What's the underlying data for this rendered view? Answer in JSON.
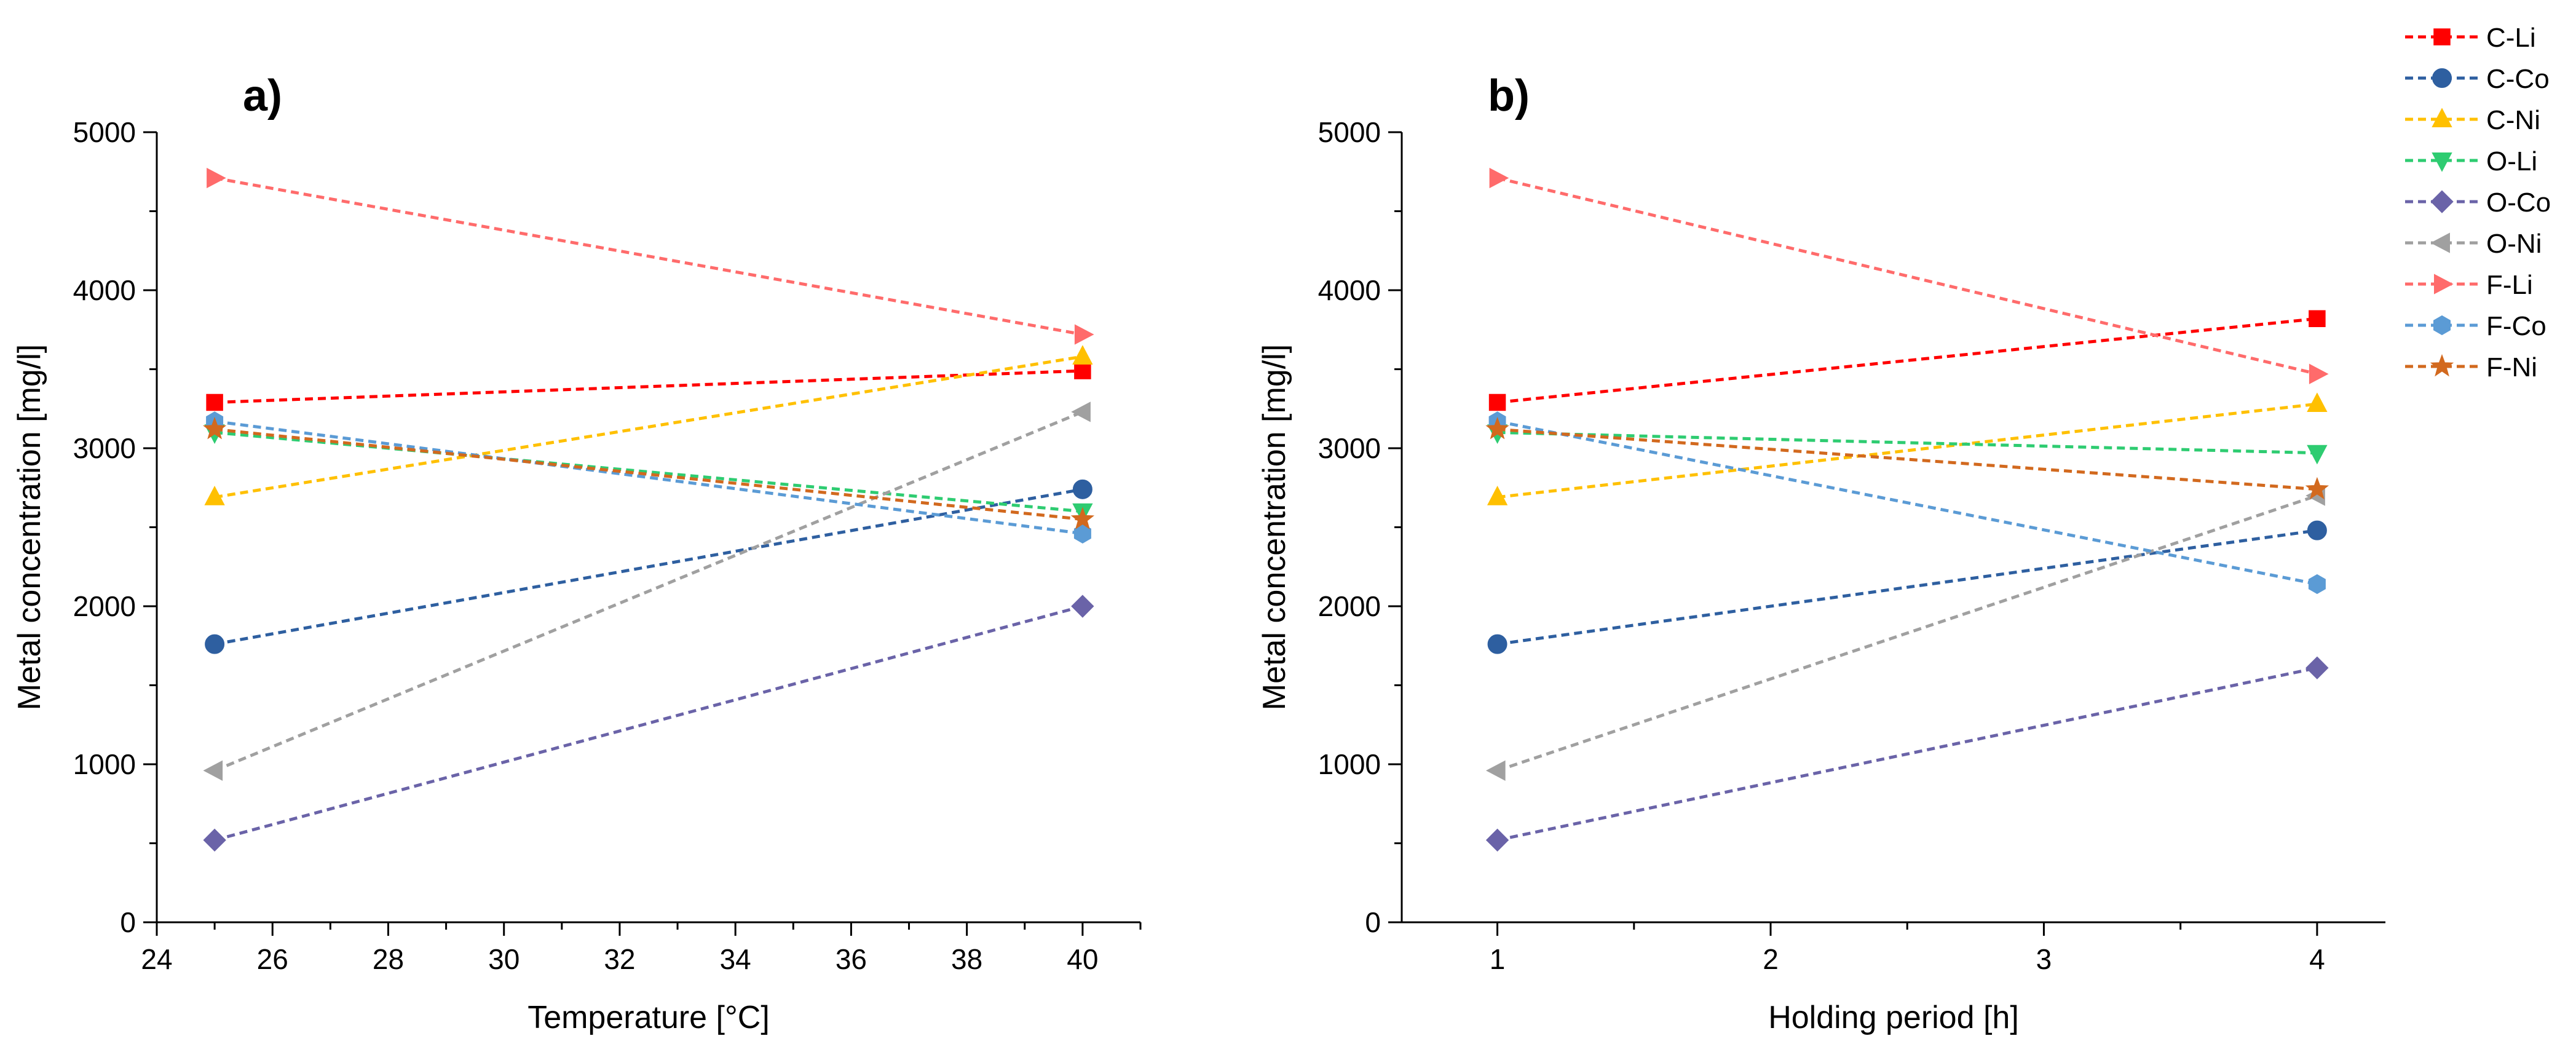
{
  "chart_data": [
    {
      "type": "line",
      "panel_label": "a)",
      "xlabel": "Temperature [°C]",
      "ylabel": "Metal concentration [mg/l]",
      "xlim": [
        24,
        41
      ],
      "ylim": [
        0,
        5000
      ],
      "x": [
        25,
        40
      ],
      "xticks": [
        24,
        26,
        28,
        30,
        32,
        34,
        36,
        38,
        40
      ],
      "xtick_labels": [
        "24",
        "26",
        "28",
        "30",
        "32",
        "34",
        "36",
        "38",
        "40"
      ],
      "yticks": [
        0,
        1000,
        2000,
        3000,
        4000,
        5000
      ],
      "ytick_labels": [
        "0",
        "1000",
        "2000",
        "3000",
        "4000",
        "5000"
      ],
      "grid": false,
      "series": [
        {
          "name": "C-Li",
          "values": [
            3290,
            3490
          ]
        },
        {
          "name": "C-Co",
          "values": [
            1760,
            2740
          ]
        },
        {
          "name": "C-Ni",
          "values": [
            2690,
            3580
          ]
        },
        {
          "name": "O-Li",
          "values": [
            3100,
            2600
          ]
        },
        {
          "name": "O-Co",
          "values": [
            520,
            2000
          ]
        },
        {
          "name": "O-Ni",
          "values": [
            960,
            3230
          ]
        },
        {
          "name": "F-Li",
          "values": [
            4710,
            3720
          ]
        },
        {
          "name": "F-Co",
          "values": [
            3170,
            2460
          ]
        },
        {
          "name": "F-Ni",
          "values": [
            3120,
            2550
          ]
        }
      ]
    },
    {
      "type": "line",
      "panel_label": "b)",
      "xlabel": "Holding period [h]",
      "ylabel": "Metal concentration [mg/l]",
      "xlim": [
        0.65,
        4.25
      ],
      "ylim": [
        0,
        5000
      ],
      "x": [
        1,
        4
      ],
      "xticks": [
        1,
        2,
        3,
        4
      ],
      "xtick_labels": [
        "1",
        "2",
        "3",
        "4"
      ],
      "yticks": [
        0,
        1000,
        2000,
        3000,
        4000,
        5000
      ],
      "ytick_labels": [
        "0",
        "1000",
        "2000",
        "3000",
        "4000",
        "5000"
      ],
      "grid": false,
      "series": [
        {
          "name": "C-Li",
          "values": [
            3290,
            3820
          ]
        },
        {
          "name": "C-Co",
          "values": [
            1760,
            2480
          ]
        },
        {
          "name": "C-Ni",
          "values": [
            2690,
            3280
          ]
        },
        {
          "name": "O-Li",
          "values": [
            3100,
            2970
          ]
        },
        {
          "name": "O-Co",
          "values": [
            520,
            1610
          ]
        },
        {
          "name": "O-Ni",
          "values": [
            960,
            2700
          ]
        },
        {
          "name": "F-Li",
          "values": [
            4710,
            3470
          ]
        },
        {
          "name": "F-Co",
          "values": [
            3170,
            2140
          ]
        },
        {
          "name": "F-Ni",
          "values": [
            3120,
            2740
          ]
        }
      ]
    }
  ],
  "legend": {
    "placement": "top-right",
    "entries": [
      {
        "name": "C-Li",
        "color": "#ff0000",
        "marker": "square"
      },
      {
        "name": "C-Co",
        "color": "#2e5fa0",
        "marker": "circle"
      },
      {
        "name": "C-Ni",
        "color": "#ffc000",
        "marker": "triangle-up"
      },
      {
        "name": "O-Li",
        "color": "#2ecc71",
        "marker": "triangle-down"
      },
      {
        "name": "O-Co",
        "color": "#6a63a8",
        "marker": "diamond"
      },
      {
        "name": "O-Ni",
        "color": "#a0a0a0",
        "marker": "triangle-left"
      },
      {
        "name": "F-Li",
        "color": "#ff6b6b",
        "marker": "triangle-right"
      },
      {
        "name": "F-Co",
        "color": "#5b9bd5",
        "marker": "hexagon"
      },
      {
        "name": "F-Ni",
        "color": "#d2691e",
        "marker": "star"
      }
    ]
  }
}
